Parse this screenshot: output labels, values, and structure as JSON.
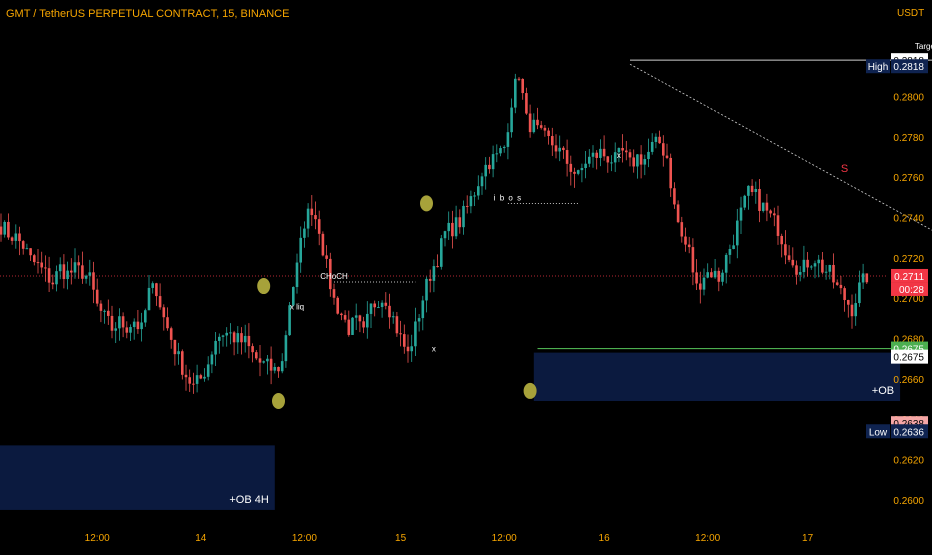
{
  "title": "GMT / TetherUS PERPETUAL CONTRACT, 15, BINANCE",
  "currency": "USDT",
  "colors": {
    "background": "#000000",
    "up": "#26a69a",
    "down": "#ef5350",
    "axis_text": "#f7a600",
    "swing_marker": "#a7a23a",
    "order_block": "#0b1a3f",
    "target_box": "#7a7a7a",
    "stop_box": "#6b3a3a",
    "level_line": "#4caf50",
    "current_price": "#f23645"
  },
  "chart_data": {
    "type": "candlestick",
    "ylim": [
      0.259,
      0.2828
    ],
    "y_ticks": [
      "0.2600",
      "0.2620",
      "0.2640",
      "0.2660",
      "0.2680",
      "0.2700",
      "0.2720",
      "0.2740",
      "0.2760",
      "0.2780",
      "0.2800",
      "0.2818"
    ],
    "x_ticks": [
      "12:00",
      "14",
      "12:00",
      "15",
      "12:00",
      "16",
      "12:00",
      "17"
    ],
    "close_path": [
      [
        0,
        0.2736
      ],
      [
        2,
        0.2732
      ],
      [
        4,
        0.273
      ],
      [
        6,
        0.2726
      ],
      [
        8,
        0.2719
      ],
      [
        10,
        0.2716
      ],
      [
        12,
        0.2712
      ],
      [
        14,
        0.2708
      ],
      [
        16,
        0.2715
      ],
      [
        18,
        0.2712
      ],
      [
        20,
        0.2714
      ],
      [
        22,
        0.2713
      ],
      [
        24,
        0.2709
      ],
      [
        26,
        0.2696
      ],
      [
        28,
        0.269
      ],
      [
        30,
        0.2685
      ],
      [
        32,
        0.2688
      ],
      [
        34,
        0.2686
      ],
      [
        36,
        0.2689
      ],
      [
        38,
        0.2684
      ],
      [
        40,
        0.2703
      ],
      [
        42,
        0.2705
      ],
      [
        44,
        0.269
      ],
      [
        46,
        0.268
      ],
      [
        48,
        0.267
      ],
      [
        50,
        0.2662
      ],
      [
        52,
        0.2656
      ],
      [
        54,
        0.266
      ],
      [
        56,
        0.2668
      ],
      [
        58,
        0.268
      ],
      [
        60,
        0.2683
      ],
      [
        62,
        0.2682
      ],
      [
        64,
        0.2679
      ],
      [
        66,
        0.2678
      ],
      [
        68,
        0.2672
      ],
      [
        70,
        0.2668
      ],
      [
        72,
        0.2666
      ],
      [
        74,
        0.2664
      ],
      [
        76,
        0.2668
      ],
      [
        78,
        0.2698
      ],
      [
        80,
        0.2715
      ],
      [
        82,
        0.2738
      ],
      [
        84,
        0.2745
      ],
      [
        86,
        0.2735
      ],
      [
        88,
        0.2715
      ],
      [
        90,
        0.2699
      ],
      [
        92,
        0.2692
      ],
      [
        94,
        0.2685
      ],
      [
        96,
        0.2688
      ],
      [
        98,
        0.2682
      ],
      [
        100,
        0.2695
      ],
      [
        102,
        0.27
      ],
      [
        104,
        0.27
      ],
      [
        106,
        0.269
      ],
      [
        108,
        0.268
      ],
      [
        110,
        0.2672
      ],
      [
        112,
        0.2685
      ],
      [
        114,
        0.27
      ],
      [
        116,
        0.2712
      ],
      [
        118,
        0.272
      ],
      [
        120,
        0.2732
      ],
      [
        122,
        0.2735
      ],
      [
        124,
        0.2738
      ],
      [
        126,
        0.2745
      ],
      [
        128,
        0.2753
      ],
      [
        130,
        0.2763
      ],
      [
        132,
        0.2768
      ],
      [
        134,
        0.277
      ],
      [
        136,
        0.2775
      ],
      [
        138,
        0.2798
      ],
      [
        140,
        0.2812
      ],
      [
        142,
        0.2788
      ],
      [
        144,
        0.2785
      ],
      [
        146,
        0.278
      ],
      [
        148,
        0.2778
      ],
      [
        150,
        0.2775
      ],
      [
        152,
        0.277
      ],
      [
        154,
        0.2765
      ],
      [
        156,
        0.276
      ],
      [
        158,
        0.2768
      ],
      [
        160,
        0.277
      ],
      [
        162,
        0.2772
      ],
      [
        164,
        0.277
      ],
      [
        166,
        0.2768
      ],
      [
        168,
        0.2772
      ],
      [
        170,
        0.2766
      ],
      [
        172,
        0.277
      ],
      [
        174,
        0.2769
      ],
      [
        176,
        0.2775
      ],
      [
        178,
        0.2777
      ],
      [
        180,
        0.277
      ],
      [
        182,
        0.2745
      ],
      [
        184,
        0.273
      ],
      [
        186,
        0.2723
      ],
      [
        188,
        0.2705
      ],
      [
        190,
        0.2712
      ],
      [
        192,
        0.2713
      ],
      [
        194,
        0.271
      ],
      [
        196,
        0.272
      ],
      [
        198,
        0.273
      ],
      [
        200,
        0.2742
      ],
      [
        202,
        0.2752
      ],
      [
        204,
        0.275
      ],
      [
        206,
        0.2745
      ],
      [
        208,
        0.274
      ],
      [
        210,
        0.2735
      ],
      [
        212,
        0.2725
      ],
      [
        214,
        0.272
      ],
      [
        216,
        0.2712
      ],
      [
        218,
        0.2718
      ],
      [
        220,
        0.272
      ],
      [
        222,
        0.2715
      ],
      [
        224,
        0.2712
      ],
      [
        226,
        0.2705
      ],
      [
        228,
        0.27
      ],
      [
        230,
        0.2695
      ],
      [
        232,
        0.2705
      ],
      [
        234,
        0.2711
      ]
    ],
    "swing_points": [
      {
        "x": 71,
        "price": 0.2706
      },
      {
        "x": 75,
        "price": 0.2649
      },
      {
        "x": 115,
        "price": 0.2747
      },
      {
        "x": 143,
        "price": 0.2654
      }
    ],
    "annotations": [
      {
        "text": "CHoCH",
        "x": 90,
        "price": 0.2708,
        "x_end": 112
      },
      {
        "text": "x liq",
        "x": 80,
        "price": 0.2693
      },
      {
        "text": "i b o s",
        "x": 137,
        "price": 0.2747,
        "x_end": 156
      },
      {
        "text": "x",
        "x": 117,
        "price": 0.2672
      },
      {
        "text": "x",
        "x": 167,
        "price": 0.2768
      },
      {
        "text": "S",
        "x": 228,
        "price": 0.2761
      },
      {
        "text": "Target",
        "x": 250,
        "price": 0.2822
      }
    ],
    "zones": [
      {
        "label": "+OB 4H",
        "x0": -2,
        "x1": 74,
        "p0": 0.2627,
        "p1": 0.2595
      },
      {
        "label": "+OB",
        "x0": 144,
        "x1": 243,
        "p0": 0.2673,
        "p1": 0.2649
      }
    ],
    "target_line": {
      "x0": 170,
      "x1": 255,
      "price": 0.2818
    },
    "trendline": {
      "x0": 170,
      "p0": 0.2816,
      "x1": 288,
      "p1": 0.2697
    },
    "risk_box": {
      "x0": 255,
      "x1": 280,
      "top": 0.2818,
      "entry": 0.2675,
      "bottom": 0.2638
    },
    "horizontal_line": {
      "x0": 145,
      "price": 0.2675
    },
    "current_price": {
      "price": 0.2711,
      "countdown": "00:28"
    },
    "price_tags": [
      {
        "text": "0.2818",
        "price": 0.2818,
        "style": "white"
      },
      {
        "text": "0.2818",
        "price": 0.2815,
        "style": "navy",
        "prefix": "High"
      },
      {
        "text": "0.2711",
        "price": 0.2711,
        "style": "red"
      },
      {
        "text": "0.2675",
        "price": 0.2675,
        "style": "green"
      },
      {
        "text": "0.2675",
        "price": 0.2671,
        "style": "white"
      },
      {
        "text": "0.2638",
        "price": 0.2638,
        "style": "pink"
      },
      {
        "text": "0.2636",
        "price": 0.2634,
        "style": "navy",
        "prefix": "Low"
      }
    ]
  }
}
